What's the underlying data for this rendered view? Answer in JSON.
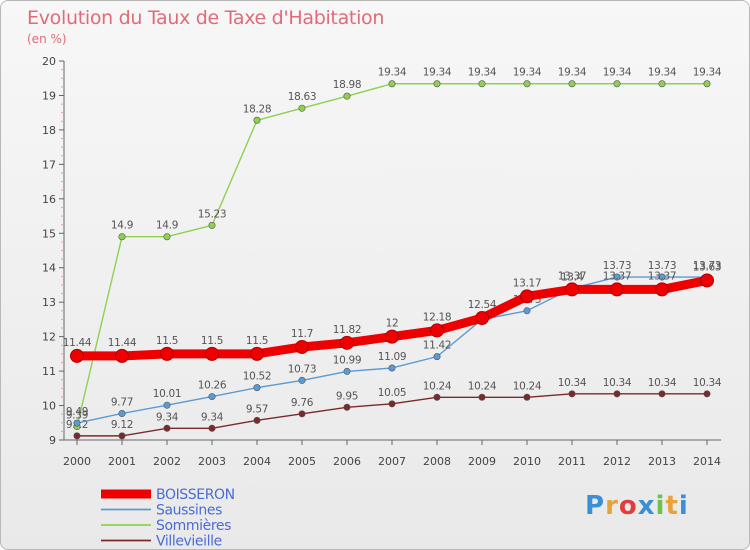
{
  "title": "Evolution du Taux de Taxe d'Habitation",
  "subtitle": "(en %)",
  "logo_text": "Proxiti",
  "colors": {
    "title": "#e06b7a",
    "axis": "#666666",
    "grid": "#dddddd",
    "boisseron": "#ee0000",
    "saussines": "#5b9bd5",
    "sommieres": "#8fd14f",
    "villevieille": "#7b2a2a",
    "legend_text": "#4a6cd4"
  },
  "chart_data": {
    "type": "line",
    "title": "Evolution du Taux de Taxe d'Habitation",
    "subtitle": "(en %)",
    "xlabel": "",
    "ylabel": "",
    "ylim": [
      9,
      20
    ],
    "yticks": [
      9,
      10,
      11,
      12,
      13,
      14,
      15,
      16,
      17,
      18,
      19,
      20
    ],
    "grid": false,
    "legend_position": "bottom-left",
    "x": [
      "2000",
      "2001",
      "2002",
      "2003",
      "2004",
      "2005",
      "2006",
      "2007",
      "2008",
      "2009",
      "2010",
      "2011",
      "2012",
      "2013",
      "2014"
    ],
    "series": [
      {
        "name": "BOISSERON",
        "key": "boisseron",
        "values": [
          11.44,
          11.44,
          11.5,
          11.5,
          11.5,
          11.7,
          11.82,
          12,
          12.18,
          12.54,
          13.17,
          13.37,
          13.37,
          13.37,
          13.63
        ],
        "labels": [
          "11.44",
          "11.44",
          "11.5",
          "11.5",
          "11.5",
          "11.7",
          "11.82",
          "12",
          "12.18",
          "12.54",
          "13.17",
          "13.37",
          "13.37",
          "13.37",
          "13.63"
        ]
      },
      {
        "name": "Saussines",
        "key": "saussines",
        "values": [
          9.49,
          9.77,
          10.01,
          10.26,
          10.52,
          10.73,
          10.99,
          11.09,
          11.42,
          12.5,
          12.75,
          13.4,
          13.73,
          13.73,
          13.73
        ],
        "labels": [
          "9.49",
          "9.77",
          "10.01",
          "10.26",
          "10.52",
          "10.73",
          "10.99",
          "11.09",
          "11.42",
          "",
          "12.75",
          "13.4",
          "13.73",
          "13.73",
          "13.73"
        ]
      },
      {
        "name": "Sommières",
        "key": "sommieres",
        "values": [
          9.39,
          14.9,
          14.9,
          15.23,
          18.28,
          18.63,
          18.98,
          19.34,
          19.34,
          19.34,
          19.34,
          19.34,
          19.34,
          19.34,
          19.34
        ],
        "labels": [
          "9.39",
          "14.9",
          "14.9",
          "15.23",
          "18.28",
          "18.63",
          "18.98",
          "19.34",
          "19.34",
          "19.34",
          "19.34",
          "19.34",
          "19.34",
          "19.34",
          "19.34"
        ]
      },
      {
        "name": "Villevieille",
        "key": "villevieille",
        "values": [
          9.12,
          9.12,
          9.34,
          9.34,
          9.57,
          9.76,
          9.95,
          10.05,
          10.24,
          10.24,
          10.24,
          10.34,
          10.34,
          10.34,
          10.34
        ],
        "labels": [
          "9.12",
          "9.12",
          "9.34",
          "9.34",
          "9.57",
          "9.76",
          "9.95",
          "10.05",
          "10.24",
          "10.24",
          "10.24",
          "10.34",
          "10.34",
          "10.34",
          "10.34"
        ]
      }
    ]
  }
}
